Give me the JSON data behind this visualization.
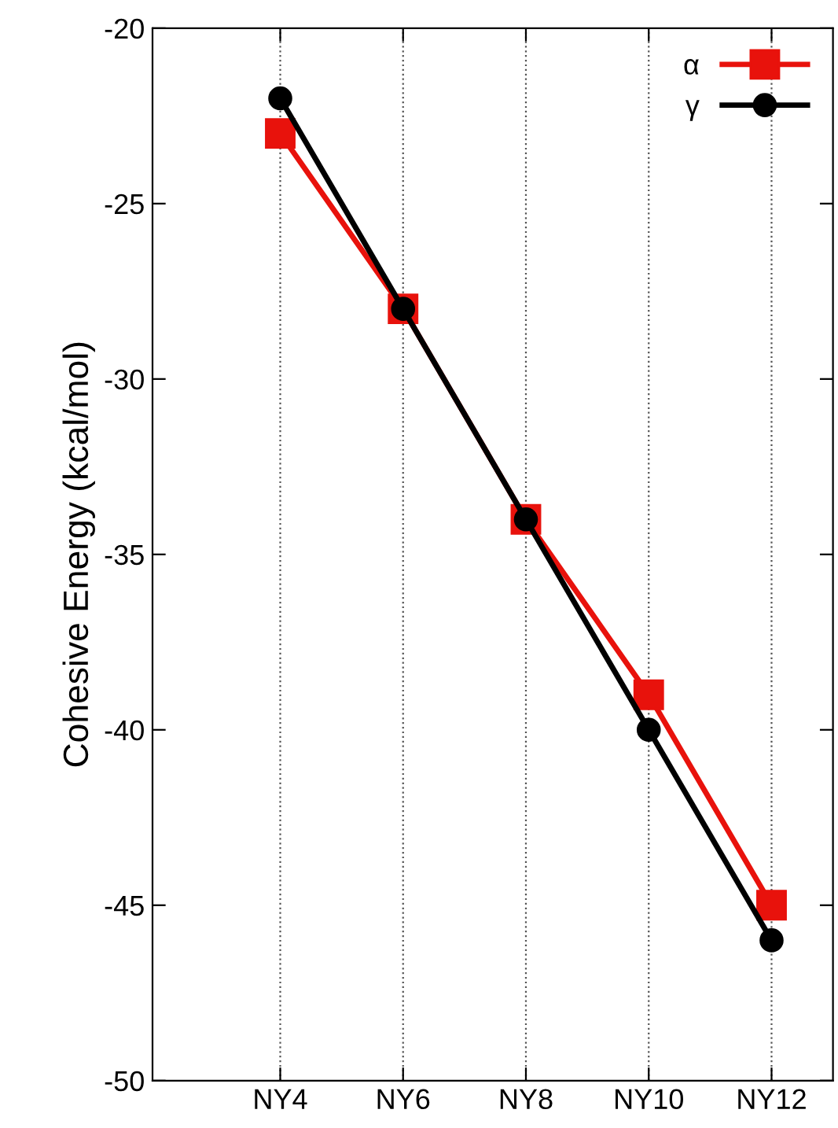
{
  "chart_data": {
    "type": "line",
    "ylabel": "Cohesive Energy (kcal/mol)",
    "categories": [
      "NY4",
      "NY6",
      "NY8",
      "NY10",
      "NY12"
    ],
    "series": [
      {
        "name": "α",
        "color": "#e8120c",
        "marker": "square",
        "values": [
          -23,
          -28,
          -34,
          -39,
          -45
        ]
      },
      {
        "name": "γ",
        "color": "#000000",
        "marker": "circle",
        "values": [
          -22,
          -28,
          -34,
          -40,
          -46
        ]
      }
    ],
    "ylim": [
      -50,
      -20
    ],
    "yticks": [
      -50,
      -45,
      -40,
      -35,
      -30,
      -25,
      -20
    ],
    "grid": "x",
    "legend": "top right",
    "line_style": "solid"
  }
}
